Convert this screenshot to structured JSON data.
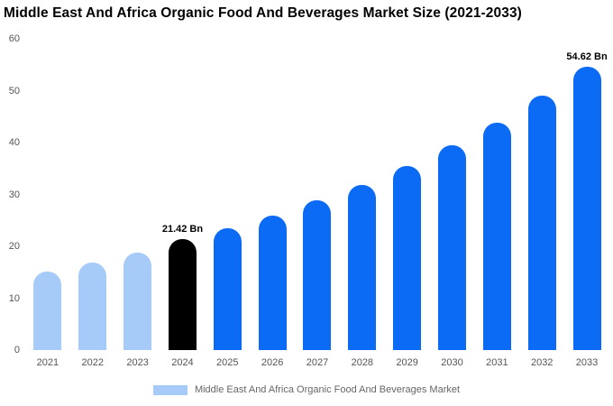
{
  "title": "Middle East And Africa Organic Food And Beverages Market Size (2021-2033)",
  "legend": {
    "label": "Middle East And Africa Organic Food And Beverages Market",
    "swatch_color": "#a6cbf8"
  },
  "colors": {
    "historical_bar": "#a6cbf8",
    "highlight_bar": "#000000",
    "forecast_bar": "#0b6bf5",
    "axis_text": "#555555"
  },
  "chart_data": {
    "type": "bar",
    "title": "Middle East And Africa Organic Food And Beverages Market Size (2021-2033)",
    "categories": [
      "2021",
      "2022",
      "2023",
      "2024",
      "2025",
      "2026",
      "2027",
      "2028",
      "2029",
      "2030",
      "2031",
      "2032",
      "2033"
    ],
    "values": [
      15.2,
      16.9,
      18.8,
      21.42,
      23.4,
      25.9,
      28.8,
      31.9,
      35.5,
      39.5,
      43.9,
      49.0,
      54.62
    ],
    "bar_colors": [
      "#a6cbf8",
      "#a6cbf8",
      "#a6cbf8",
      "#000000",
      "#0b6bf5",
      "#0b6bf5",
      "#0b6bf5",
      "#0b6bf5",
      "#0b6bf5",
      "#0b6bf5",
      "#0b6bf5",
      "#0b6bf5",
      "#0b6bf5"
    ],
    "annotations": [
      {
        "index": 3,
        "label": "21.42 Bn"
      },
      {
        "index": 12,
        "label": "54.62 Bn"
      }
    ],
    "xlabel": "",
    "ylabel": "",
    "ylim": [
      0,
      60
    ],
    "yticks": [
      0,
      10,
      20,
      30,
      40,
      50,
      60
    ],
    "grid": false,
    "legend_position": "bottom",
    "legend_entries": [
      "Middle East And Africa Organic Food And Beverages Market"
    ],
    "unit": "Bn"
  }
}
